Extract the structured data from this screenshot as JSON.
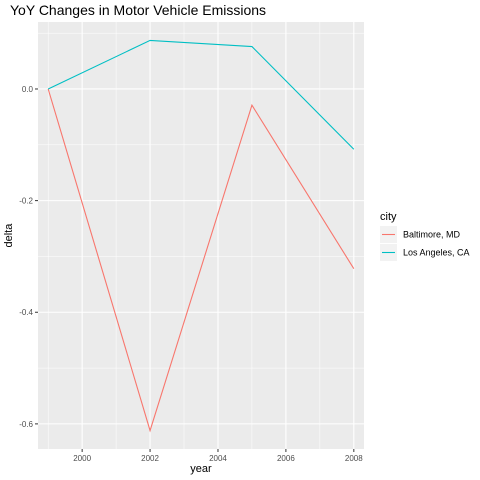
{
  "chart_data": {
    "type": "line",
    "title": "YoY Changes in Motor Vehicle Emissions",
    "xlabel": "year",
    "ylabel": "delta",
    "x": [
      1999,
      2002,
      2005,
      2008
    ],
    "series": [
      {
        "name": "Baltimore, MD",
        "values": [
          0.0,
          -0.612,
          -0.029,
          -0.322
        ],
        "color": "#F8766D"
      },
      {
        "name": "Los Angeles, CA",
        "values": [
          0.0,
          0.087,
          0.076,
          -0.108
        ],
        "color": "#00BFC4"
      }
    ],
    "xlim": [
      1998.7,
      2008.3
    ],
    "ylim": [
      -0.645,
      0.12
    ],
    "x_ticks": [
      2000,
      2002,
      2004,
      2006,
      2008
    ],
    "x_tick_labels": [
      "2000",
      "2002",
      "2004",
      "2006",
      "2008"
    ],
    "y_ticks": [
      0.0,
      -0.2,
      -0.4,
      -0.6
    ],
    "y_tick_labels": [
      "0.0",
      "-0.2",
      "-0.4",
      "-0.6"
    ],
    "grid": true,
    "legend": {
      "title": "city",
      "position": "right"
    },
    "panel_background": "#EBEBEB",
    "grid_color": "#FFFFFF"
  }
}
